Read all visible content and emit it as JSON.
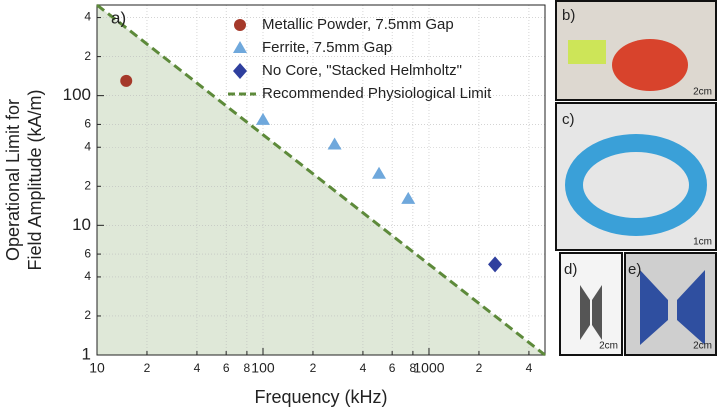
{
  "chart_data": {
    "type": "scatter",
    "panel_label": "a)",
    "xlabel": "Frequency (kHz)",
    "ylabel": [
      "Operational Limit for",
      "Field Amplitude (kA/m)"
    ],
    "xscale": "log",
    "yscale": "log",
    "xlim": [
      10,
      5000
    ],
    "ylim": [
      1,
      500
    ],
    "xticks": [
      10,
      {
        "value": 20,
        "label": "2"
      },
      {
        "value": 40,
        "label": "4"
      },
      {
        "value": 60,
        "label": "6"
      },
      {
        "value": 80,
        "label": "8"
      },
      100,
      {
        "value": 200,
        "label": "2"
      },
      {
        "value": 400,
        "label": "4"
      },
      {
        "value": 600,
        "label": "6"
      },
      {
        "value": 800,
        "label": "8"
      },
      1000,
      {
        "value": 2000,
        "label": "2"
      },
      {
        "value": 4000,
        "label": "4"
      }
    ],
    "yticks": [
      1,
      {
        "value": 2,
        "label": "2"
      },
      {
        "value": 4,
        "label": "4"
      },
      {
        "value": 6,
        "label": "6"
      },
      10,
      {
        "value": 20,
        "label": "2"
      },
      {
        "value": 40,
        "label": "4"
      },
      {
        "value": 60,
        "label": "6"
      },
      100,
      {
        "value": 200,
        "label": "2"
      },
      {
        "value": 400,
        "label": "4"
      }
    ],
    "grid": true,
    "legend": "top",
    "series": [
      {
        "name": "Metallic Powder, 7.5mm Gap",
        "color": "#a5392a",
        "marker": "circle",
        "x": [
          15
        ],
        "values": [
          130
        ]
      },
      {
        "name": "Ferrite, 7.5mm Gap",
        "color": "#6fa8dc",
        "marker": "triangle",
        "x": [
          100,
          270,
          500,
          750
        ],
        "values": [
          65,
          42,
          25,
          16
        ]
      },
      {
        "name": "No Core, \"Stacked Helmholtz\"",
        "color": "#2f3f9e",
        "marker": "diamond",
        "x": [
          2500
        ],
        "values": [
          5
        ]
      },
      {
        "name": "Recommended Physiological Limit",
        "color": "#5d8a3a",
        "marker": "dashed",
        "x": [
          10,
          5000
        ],
        "values": [
          500,
          1
        ]
      }
    ]
  },
  "panels": [
    {
      "label": "b)",
      "scale": "2cm"
    },
    {
      "label": "c)",
      "scale": "1cm"
    },
    {
      "label": "d)",
      "scale": "2cm"
    },
    {
      "label": "e)",
      "scale": "2cm"
    }
  ]
}
